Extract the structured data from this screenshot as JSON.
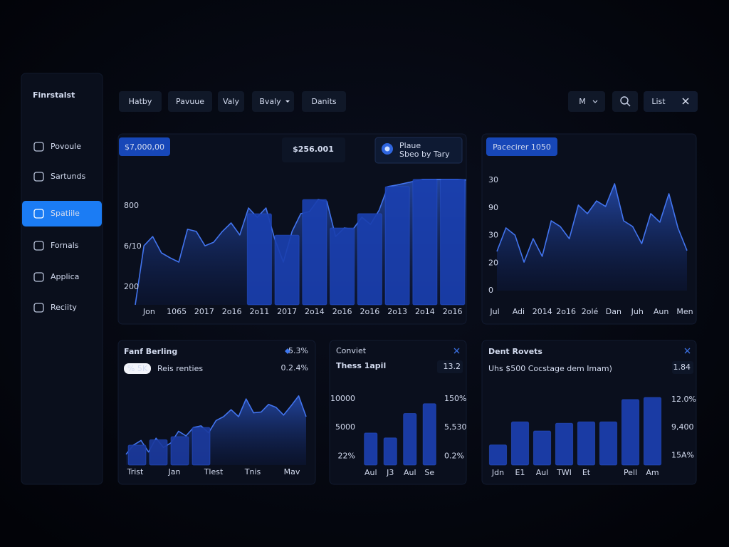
{
  "sidebar": {
    "brand": "Finrstalst",
    "items": [
      "Povoule",
      "Sartunds",
      "Spatiile",
      "Fornals",
      "Applica",
      "Reciity"
    ],
    "active": 2
  },
  "toolbar": {
    "tabs": [
      "Hatby",
      "Pavuue",
      "Valy",
      "Bvaly",
      "Danits"
    ],
    "user": "M",
    "view": "List"
  },
  "chart_data": [
    {
      "type": "combo",
      "badge": "$7,000,00",
      "value": "$256.001",
      "legend_title": "Plaue",
      "legend_subtitle": "Sbeo by Tary",
      "ylim": [
        0,
        1000
      ],
      "y_labels": [
        "800",
        "6/10",
        "200"
      ],
      "categories": [
        "Jon",
        "1065",
        "2017",
        "2o16",
        "2o11",
        "2017",
        "2o14",
        "2o16",
        "2o16",
        "2o13",
        "2o14",
        "2o16"
      ],
      "line": {
        "color": "#4274ee",
        "values": [
          0,
          466,
          539,
          410,
          371,
          337,
          596,
          579,
          466,
          494,
          579,
          646,
          551,
          764,
          691,
          764,
          522,
          337,
          579,
          719,
          736,
          831,
          815,
          539,
          607,
          596,
          691,
          635,
          747,
          933,
          945,
          960,
          975,
          990,
          990,
          990,
          990,
          990,
          985
        ]
      },
      "bars": {
        "color": "#1a3fae",
        "values": [
          null,
          null,
          null,
          null,
          719,
          550,
          831,
          607,
          720,
          933,
          990,
          990
        ]
      }
    },
    {
      "type": "area",
      "badge": "Pacecirer 1050",
      "ylim": [
        0,
        40
      ],
      "y_labels": [
        "30",
        "90",
        "30",
        "20",
        "0"
      ],
      "categories": [
        "Jul",
        "Adi",
        "2014",
        "2o16",
        "2olé",
        "Dan",
        "Juh",
        "Aun",
        "Men"
      ],
      "line": {
        "color": "#4274ee",
        "values": [
          14.2,
          22.7,
          20.1,
          10.3,
          18.8,
          12.4,
          25.3,
          23.2,
          18.8,
          31,
          27.9,
          32.5,
          30.5,
          38.7,
          25.3,
          23.2,
          17,
          27.9,
          24.8,
          35.1,
          22.7,
          14.5
        ]
      }
    },
    {
      "type": "combo",
      "title": "Fanf Berling",
      "stat": "5.3%",
      "pill": "% 5K",
      "subtitle": "Reis renties",
      "stat2": "0.2.4%",
      "ylim": [
        0,
        100
      ],
      "categories": [
        "Trist",
        "Jan",
        "Tlest",
        "Tnis",
        "Mav"
      ],
      "line": {
        "color": "#4274ee",
        "values": [
          14,
          26,
          32,
          17,
          35,
          23,
          29,
          44,
          38,
          49,
          51,
          42,
          58,
          63,
          72,
          63,
          86,
          68,
          69,
          79,
          75,
          65,
          77,
          90,
          63
        ]
      },
      "bars": {
        "color": "#1b3a9c",
        "values": [
          26,
          33,
          37,
          49
        ]
      }
    },
    {
      "type": "bar",
      "label": "Conviet",
      "title": "Thess 1apil",
      "stat": "13.2",
      "ylim": [
        0,
        100
      ],
      "y_labels": [
        "10000",
        "5000",
        "22%"
      ],
      "y2_labels": [
        "150%",
        "5,530",
        "0.2%"
      ],
      "categories": [
        "Aul",
        "J3",
        "Aul",
        "Se"
      ],
      "bars": {
        "color": "#1c3fb0",
        "values": [
          46,
          39,
          74,
          88
        ]
      }
    },
    {
      "type": "bar",
      "title": "Dent Rovets",
      "subtitle": "Uhs $500 Cocstage dem Imam)",
      "stat": "1.84",
      "ylim": [
        0,
        100
      ],
      "y2_labels": [
        "12.0%",
        "9,400",
        "15A%"
      ],
      "categories": [
        "Jdn",
        "E1",
        "Aul",
        "TWI",
        "Et",
        null,
        "Pell",
        "Am"
      ],
      "bars": {
        "color": "#1c3fb0",
        "values": [
          29,
          62,
          49,
          60,
          62,
          62,
          94,
          97
        ]
      }
    }
  ]
}
